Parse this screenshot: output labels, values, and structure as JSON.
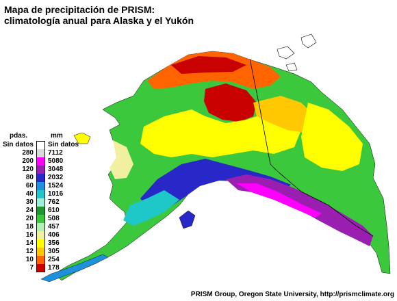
{
  "title_line1": "Mapa de precipitación de PRISM:",
  "title_line2": "climatología anual para Alaska y el Yukón",
  "legend": {
    "header_in": "pdas.",
    "header_mm": "mm",
    "items": [
      {
        "in": "Sin datos",
        "mm": "Sin datos",
        "color": "#ffffff"
      },
      {
        "in": "280",
        "mm": "7112",
        "color": "#d9d9d9"
      },
      {
        "in": "200",
        "mm": "5080",
        "color": "#ff00ff"
      },
      {
        "in": "120",
        "mm": "3048",
        "color": "#9a1fb0"
      },
      {
        "in": "80",
        "mm": "2032",
        "color": "#2828c8"
      },
      {
        "in": "60",
        "mm": "1524",
        "color": "#1e90dc"
      },
      {
        "in": "40",
        "mm": "1016",
        "color": "#1ec8c8"
      },
      {
        "in": "30",
        "mm": "762",
        "color": "#9ef0dc"
      },
      {
        "in": "24",
        "mm": "610",
        "color": "#1e9632"
      },
      {
        "in": "20",
        "mm": "508",
        "color": "#3cc83c"
      },
      {
        "in": "18",
        "mm": "457",
        "color": "#b4f0b4"
      },
      {
        "in": "16",
        "mm": "406",
        "color": "#f0f0a0"
      },
      {
        "in": "14",
        "mm": "356",
        "color": "#ffff00"
      },
      {
        "in": "12",
        "mm": "305",
        "color": "#ffc800"
      },
      {
        "in": "10",
        "mm": "254",
        "color": "#ff6400"
      },
      {
        "in": "7",
        "mm": "178",
        "color": "#c80000"
      }
    ]
  },
  "credit": "PRISM Group, Oregon State University, http://prismclimate.org"
}
